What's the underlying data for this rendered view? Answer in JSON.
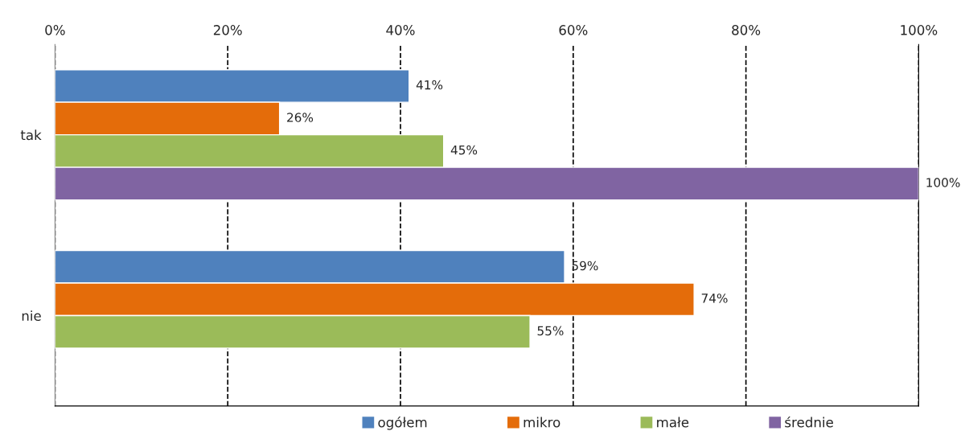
{
  "chart_data": {
    "type": "bar",
    "orientation": "horizontal",
    "categories": [
      "tak",
      "nie"
    ],
    "series": [
      {
        "name": "ogółem",
        "color": "#4f81bd",
        "values": [
          41,
          59
        ],
        "value_labels": [
          "41%",
          "59%"
        ]
      },
      {
        "name": "mikro",
        "color": "#e46c0a",
        "values": [
          26,
          74
        ],
        "value_labels": [
          "26%",
          "74%"
        ]
      },
      {
        "name": "małe",
        "color": "#9bbb59",
        "values": [
          45,
          55
        ],
        "value_labels": [
          "45%",
          "55%"
        ]
      },
      {
        "name": "średnie",
        "color": "#8064a2",
        "values": [
          100,
          null
        ],
        "value_labels": [
          "100%",
          null
        ]
      }
    ],
    "xlim": [
      0,
      100
    ],
    "xticks": [
      {
        "value": 0,
        "label": "0%"
      },
      {
        "value": 20,
        "label": "20%"
      },
      {
        "value": 40,
        "label": "40%"
      },
      {
        "value": 60,
        "label": "60%"
      },
      {
        "value": 80,
        "label": "80%"
      },
      {
        "value": 100,
        "label": "100%"
      }
    ],
    "grid": "x",
    "line_style": "dashed",
    "legend": "bottom"
  }
}
